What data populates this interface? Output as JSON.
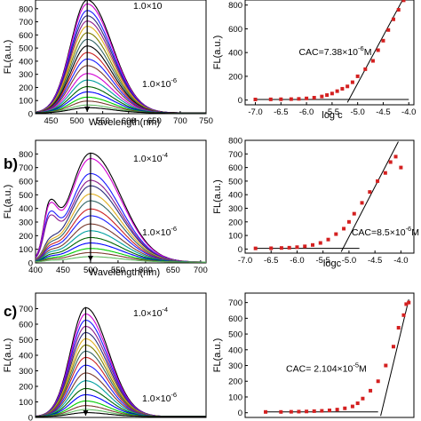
{
  "chart_data": [
    {
      "type": "line",
      "panel_label": "",
      "xlabel": "Wavelength(nm)",
      "ylabel": "FL(a.u.)",
      "xlim": [
        420,
        750
      ],
      "ylim": [
        0,
        900
      ],
      "xticks": [
        450,
        500,
        550,
        600,
        650,
        700,
        750
      ],
      "yticks": [
        0,
        100,
        200,
        300,
        400,
        500,
        600,
        700,
        800
      ],
      "peak_x": 520,
      "sigma_left": 32,
      "sigma_right": 48,
      "curve_peaks": [
        860,
        830,
        780,
        740,
        700,
        660,
        610,
        560,
        510,
        460,
        410,
        360,
        300,
        250,
        200,
        160,
        120,
        90,
        60,
        40
      ],
      "series_colors": [
        "#000000",
        "#d400d4",
        "#1a1aff",
        "#2b2b7a",
        "#8b1a8b",
        "#e0b020",
        "#808000",
        "#336666",
        "#000000",
        "#cc2222",
        "#1a1aff",
        "#7a3b2e",
        "#d400d4",
        "#00a0a0",
        "#006400",
        "#0000ff",
        "#00cc00",
        "#7a3b2e",
        "#66bb66",
        "#000000"
      ],
      "annotations": [
        "1.0×10",
        "1.0×10-6"
      ]
    },
    {
      "type": "scatter",
      "xlabel": "log c",
      "ylabel": "FL(a.u.)",
      "xlim": [
        -7.2,
        -3.9
      ],
      "ylim": [
        -40,
        880
      ],
      "xticks": [
        -7.0,
        -6.5,
        -6.0,
        -5.5,
        -5.0,
        -4.5,
        -4.0
      ],
      "xtick_labels": [
        "-7.0",
        "-6.5",
        "-6.0",
        "-5.5",
        "-5.0",
        "-4.5",
        "-4.0"
      ],
      "yticks": [
        0,
        200,
        400,
        600,
        800
      ],
      "x": [
        -7.0,
        -6.7,
        -6.5,
        -6.3,
        -6.15,
        -6.0,
        -5.85,
        -5.7,
        -5.6,
        -5.5,
        -5.4,
        -5.3,
        -5.2,
        -5.1,
        -5.0,
        -4.85,
        -4.7,
        -4.6,
        -4.5,
        -4.4,
        -4.3,
        -4.2,
        -4.1
      ],
      "y": [
        5,
        6,
        7,
        8,
        10,
        14,
        20,
        30,
        42,
        55,
        75,
        95,
        115,
        150,
        200,
        260,
        330,
        420,
        500,
        590,
        680,
        760,
        840
      ],
      "baseline_line": {
        "x1": -7.0,
        "y1": 5,
        "x2": -4.0,
        "y2": 5
      },
      "fit_line": {
        "x1": -5.2,
        "y1": -20,
        "x2": -4.1,
        "y2": 860
      },
      "cac_label_prefix": "CAC=7.38×10",
      "cac_label_exp": "-6",
      "cac_label_suffix": "M",
      "cac_label_x": -6.15,
      "cac_label_y": 380
    },
    {
      "type": "line",
      "panel_label": "b)",
      "xlabel": "Wavelength(nm)",
      "ylabel": "FL(a.u.)",
      "xlim": [
        400,
        710
      ],
      "ylim": [
        0,
        900
      ],
      "xticks": [
        400,
        450,
        500,
        550,
        600,
        650,
        700
      ],
      "yticks": [
        0,
        100,
        200,
        300,
        400,
        500,
        600,
        700,
        800
      ],
      "peak_x": 500,
      "sigma_left": 38,
      "sigma_right": 55,
      "curve_peaks": [
        800,
        760,
        650,
        600,
        560,
        500,
        450,
        390,
        340,
        280,
        230,
        180,
        140,
        100,
        70,
        40
      ],
      "shoulder_x": 425,
      "shoulder_frac": 0.42,
      "series_colors": [
        "#000000",
        "#d400d4",
        "#1a1aff",
        "#8b1a8b",
        "#2b2b7a",
        "#e0b020",
        "#336666",
        "#cc2222",
        "#1a1aff",
        "#7a3b2e",
        "#00a0a0",
        "#006400",
        "#0000ff",
        "#00cc00",
        "#7a3b2e",
        "#66bb66"
      ],
      "annotations": [
        "1.0×10-4",
        "1.0×10-6"
      ]
    },
    {
      "type": "scatter",
      "xlabel": "logc",
      "ylabel": "FL(a.u.)",
      "xlim": [
        -7.0,
        -3.75
      ],
      "ylim": [
        -30,
        800
      ],
      "xticks": [
        -7.0,
        -6.5,
        -6.0,
        -5.5,
        -5.0,
        -4.5,
        -4.0
      ],
      "xtick_labels": [
        "-7.0",
        "-6.5",
        "-6.0",
        "-5.5",
        "-5.0",
        "-4.5",
        "-4.0"
      ],
      "yticks": [
        0,
        100,
        200,
        300,
        400,
        500,
        600,
        700,
        800
      ],
      "x": [
        -6.8,
        -6.5,
        -6.3,
        -6.15,
        -6.0,
        -5.85,
        -5.7,
        -5.55,
        -5.4,
        -5.25,
        -5.1,
        -5.0,
        -4.9,
        -4.75,
        -4.6,
        -4.45,
        -4.3,
        -4.2,
        -4.1,
        -4.0
      ],
      "y": [
        5,
        6,
        8,
        10,
        14,
        20,
        30,
        45,
        70,
        110,
        150,
        200,
        260,
        340,
        420,
        500,
        560,
        640,
        680,
        600
      ],
      "baseline_line": {
        "x1": -6.8,
        "y1": 5,
        "x2": -4.8,
        "y2": 5
      },
      "fit_line": {
        "x1": -5.15,
        "y1": -20,
        "x2": -4.05,
        "y2": 790
      },
      "cac_label_prefix": "CAC=8.5×10",
      "cac_label_exp": "-6",
      "cac_label_suffix": "M",
      "cac_label_x": -4.95,
      "cac_label_y": 100
    },
    {
      "type": "line",
      "panel_label": "c)",
      "xlabel": "",
      "ylabel": "FL(a.u.)",
      "xlim": [
        420,
        760
      ],
      "ylim": [
        0,
        800
      ],
      "xticks": [],
      "yticks": [
        0,
        100,
        200,
        300,
        400,
        500,
        600,
        700
      ],
      "peak_x": 520,
      "sigma_left": 30,
      "sigma_right": 45,
      "curve_peaks": [
        700,
        660,
        620,
        580,
        540,
        500,
        460,
        420,
        380,
        330,
        280,
        230,
        180,
        140,
        100,
        70,
        45,
        25
      ],
      "series_colors": [
        "#000000",
        "#d400d4",
        "#1a1aff",
        "#8b1a8b",
        "#2b2b7a",
        "#e0b020",
        "#808000",
        "#336666",
        "#cc2222",
        "#1a1aff",
        "#7a3b2e",
        "#00a0a0",
        "#006400",
        "#0000ff",
        "#00cc00",
        "#7a3b2e",
        "#66bb66",
        "#000000"
      ],
      "annotations": [
        "1.0×10-4",
        "1.0×10-6"
      ]
    },
    {
      "type": "scatter",
      "xlabel": "",
      "ylabel": "FL(a.u.)",
      "xlim": [
        -7.2,
        -3.9
      ],
      "ylim": [
        -30,
        760
      ],
      "xticks": [],
      "yticks": [
        0,
        100,
        200,
        300,
        400,
        500,
        600,
        700
      ],
      "x": [
        -6.8,
        -6.5,
        -6.3,
        -6.15,
        -6.0,
        -5.85,
        -5.7,
        -5.55,
        -5.4,
        -5.25,
        -5.1,
        -5.0,
        -4.9,
        -4.75,
        -4.6,
        -4.45,
        -4.3,
        -4.2,
        -4.1,
        -4.05,
        -4.0
      ],
      "y": [
        5,
        5,
        6,
        7,
        8,
        10,
        12,
        15,
        20,
        28,
        40,
        60,
        90,
        140,
        200,
        300,
        420,
        540,
        620,
        690,
        700
      ],
      "baseline_line": {
        "x1": -6.8,
        "y1": 5,
        "x2": -4.6,
        "y2": 5
      },
      "fit_line": {
        "x1": -4.55,
        "y1": -20,
        "x2": -4.0,
        "y2": 720
      },
      "cac_label_prefix": "CAC= 2.104×10",
      "cac_label_exp": "-5",
      "cac_label_suffix": "M",
      "cac_label_x": -6.4,
      "cac_label_y": 260
    }
  ]
}
